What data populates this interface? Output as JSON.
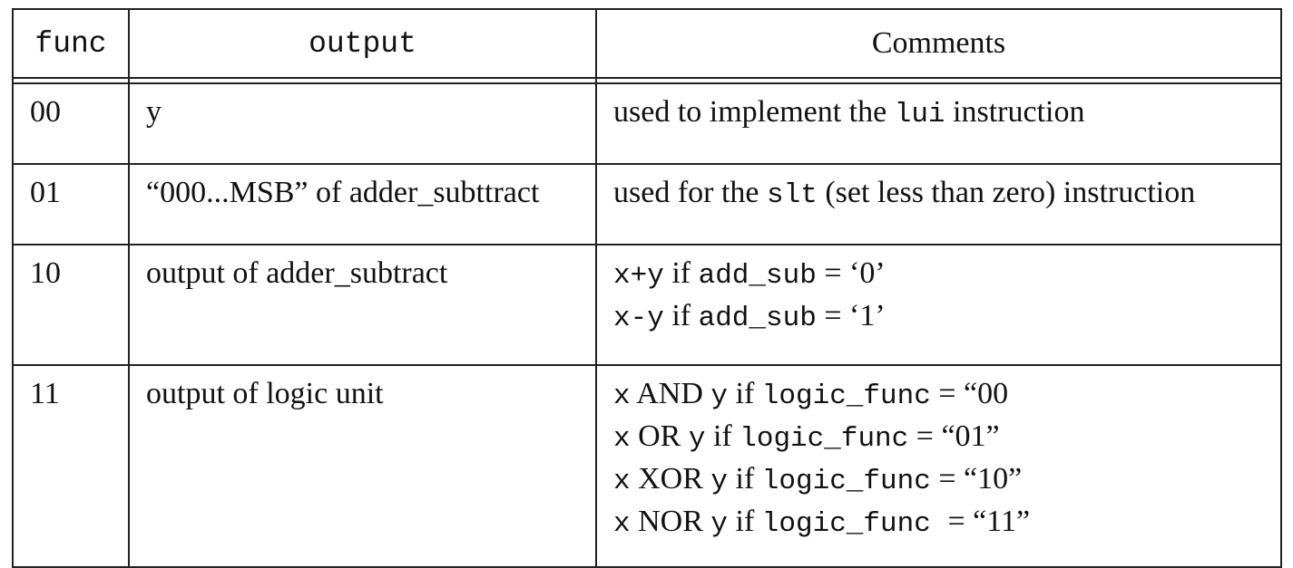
{
  "headers": {
    "func": "func",
    "output": "output",
    "comments": "Comments"
  },
  "rows": [
    {
      "func": "00",
      "output": "y",
      "comment": [
        [
          {
            "t": "used to implement the ",
            "m": false
          },
          {
            "t": "lui",
            "m": true
          },
          {
            "t": " instruction",
            "m": false
          }
        ]
      ]
    },
    {
      "func": "01",
      "output": "“000...MSB” of adder_subttract",
      "comment": [
        [
          {
            "t": "used for the ",
            "m": false
          },
          {
            "t": "slt",
            "m": true
          },
          {
            "t": " (set less than zero) instruction",
            "m": false
          }
        ]
      ]
    },
    {
      "func": "10",
      "output": "output of adder_subtract",
      "comment": [
        [
          {
            "t": "x+y",
            "m": true
          },
          {
            "t": " if ",
            "m": false
          },
          {
            "t": "add_sub",
            "m": true
          },
          {
            "t": " = ‘0’",
            "m": false
          }
        ],
        [
          {
            "t": "x-y",
            "m": true
          },
          {
            "t": " if ",
            "m": false
          },
          {
            "t": "add_sub",
            "m": true
          },
          {
            "t": " = ‘1’",
            "m": false
          }
        ]
      ]
    },
    {
      "func": "11",
      "output": "output of logic unit",
      "comment": [
        [
          {
            "t": "x",
            "m": true
          },
          {
            "t": " AND ",
            "m": false
          },
          {
            "t": "y",
            "m": true
          },
          {
            "t": " if ",
            "m": false
          },
          {
            "t": "logic_func",
            "m": true
          },
          {
            "t": " = “00",
            "m": false
          }
        ],
        [
          {
            "t": "x",
            "m": true
          },
          {
            "t": " OR ",
            "m": false
          },
          {
            "t": "y",
            "m": true
          },
          {
            "t": " if ",
            "m": false
          },
          {
            "t": "logic_func",
            "m": true
          },
          {
            "t": " = “01”",
            "m": false
          }
        ],
        [
          {
            "t": "x",
            "m": true
          },
          {
            "t": " XOR ",
            "m": false
          },
          {
            "t": "y",
            "m": true
          },
          {
            "t": " if ",
            "m": false
          },
          {
            "t": "logic_func",
            "m": true
          },
          {
            "t": " = “10”",
            "m": false
          }
        ],
        [
          {
            "t": "x",
            "m": true
          },
          {
            "t": " NOR ",
            "m": false
          },
          {
            "t": "y",
            "m": true
          },
          {
            "t": " if ",
            "m": false
          },
          {
            "t": "logic_func ",
            "m": true
          },
          {
            "t": " = “11”",
            "m": false
          }
        ]
      ]
    }
  ]
}
